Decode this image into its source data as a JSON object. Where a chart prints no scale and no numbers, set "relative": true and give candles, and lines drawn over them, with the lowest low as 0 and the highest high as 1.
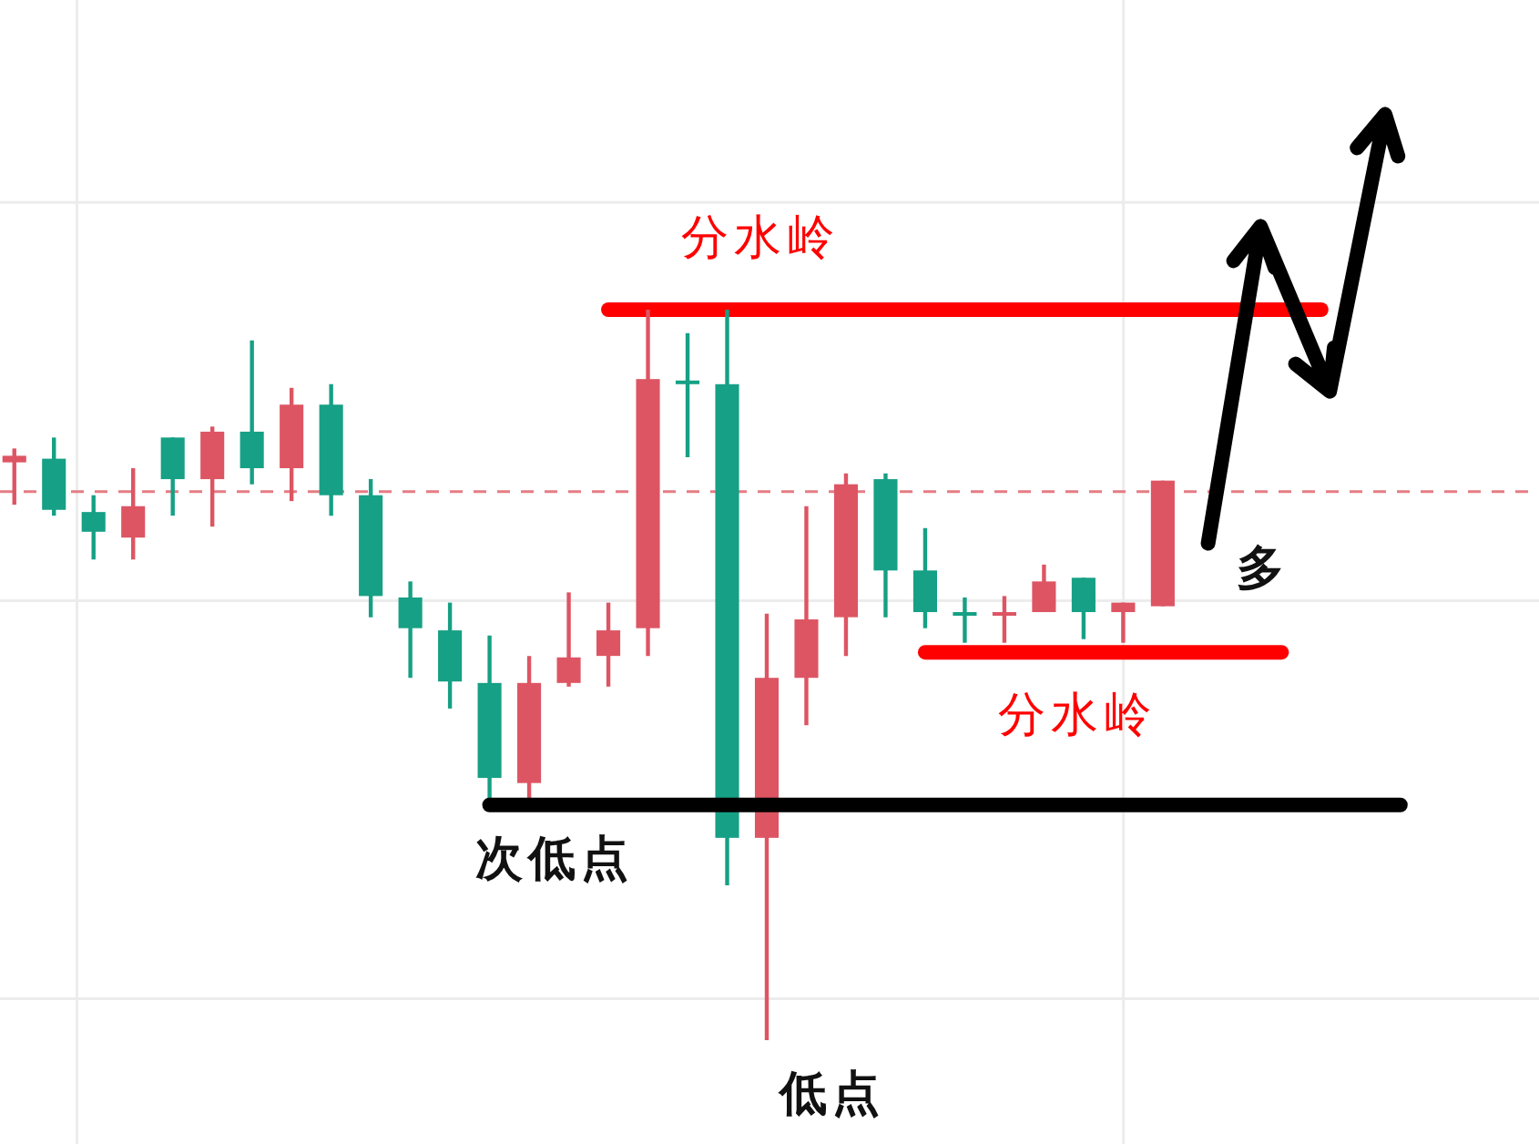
{
  "chart_data": {
    "type": "candlestick",
    "relative": true,
    "grid": true,
    "categories": [
      null,
      null,
      null,
      null,
      null,
      null,
      null,
      null,
      null,
      null,
      null,
      null,
      null,
      null,
      null,
      null,
      null,
      null,
      null,
      null,
      null,
      null,
      null,
      null,
      null,
      null,
      null,
      null,
      null,
      null,
      null,
      null,
      null,
      null,
      null,
      null,
      null,
      null,
      null
    ],
    "ohlc": [
      [
        0.791,
        0.81,
        0.733,
        0.8
      ],
      [
        0.796,
        0.825,
        0.718,
        0.726
      ],
      [
        0.723,
        0.746,
        0.658,
        0.696
      ],
      [
        0.688,
        0.783,
        0.658,
        0.731
      ],
      [
        0.825,
        0.825,
        0.718,
        0.768
      ],
      [
        0.768,
        0.84,
        0.703,
        0.833
      ],
      [
        0.833,
        0.958,
        0.761,
        0.783
      ],
      [
        0.783,
        0.893,
        0.738,
        0.87
      ],
      [
        0.87,
        0.898,
        0.718,
        0.746
      ],
      [
        0.746,
        0.768,
        0.579,
        0.608
      ],
      [
        0.606,
        0.628,
        0.496,
        0.564
      ],
      [
        0.561,
        0.599,
        0.454,
        0.491
      ],
      [
        0.489,
        0.554,
        0.327,
        0.359
      ],
      [
        0.352,
        0.526,
        0.327,
        0.489
      ],
      [
        0.489,
        0.613,
        0.484,
        0.524
      ],
      [
        0.526,
        0.599,
        0.484,
        0.561
      ],
      [
        0.564,
        1,
        0.526,
        0.905
      ],
      [
        0.903,
        0.968,
        0.798,
        0.9
      ],
      [
        0.898,
        1,
        0.212,
        0.277
      ],
      [
        0.277,
        0.584,
        0,
        0.496
      ],
      [
        0.496,
        0.731,
        0.431,
        0.576
      ],
      [
        0.579,
        0.776,
        0.526,
        0.761
      ],
      [
        0.768,
        0.776,
        0.579,
        0.643
      ],
      [
        0.643,
        0.701,
        0.564,
        0.586
      ],
      [
        0.586,
        0.606,
        0.544,
        0.584
      ],
      [
        0.584,
        0.608,
        0.544,
        0.586
      ],
      [
        0.586,
        0.651,
        0.586,
        0.628
      ],
      [
        0.633,
        0.633,
        0.549,
        0.586
      ],
      [
        0.586,
        0.599,
        0.544,
        0.599
      ],
      [
        0.594,
        0.766,
        0.594,
        0.766
      ],
      null,
      null,
      null,
      null,
      null,
      null,
      null,
      null,
      null
    ],
    "colors": [
      "#dd5563",
      "#16a085",
      "#16a085",
      "#dd5563",
      "#16a085",
      "#dd5563",
      "#16a085",
      "#dd5563",
      "#16a085",
      "#16a085",
      "#16a085",
      "#16a085",
      "#16a085",
      "#dd5563",
      "#dd5563",
      "#dd5563",
      "#dd5563",
      "#16a085",
      "#16a085",
      "#dd5563",
      "#dd5563",
      "#dd5563",
      "#16a085",
      "#16a085",
      "#16a085",
      "#dd5563",
      "#dd5563",
      "#16a085",
      "#dd5563",
      "#dd5563",
      null,
      null,
      null,
      null,
      null,
      null,
      null,
      null,
      null
    ],
    "series": [
      {
        "type": "line",
        "name": "分水岭",
        "color": "#ff0000",
        "values": [
          null,
          null,
          null,
          null,
          null,
          null,
          null,
          null,
          null,
          null,
          null,
          null,
          null,
          null,
          null,
          1,
          1,
          1,
          1,
          1,
          1,
          1,
          1,
          1,
          1,
          1,
          1,
          1,
          1,
          1,
          1,
          1,
          1,
          1,
          null,
          null,
          null,
          null,
          null
        ]
      },
      {
        "type": "line",
        "name": "分水岭",
        "color": "#ff0000",
        "values": [
          null,
          null,
          null,
          null,
          null,
          null,
          null,
          null,
          null,
          null,
          null,
          null,
          null,
          null,
          null,
          null,
          null,
          null,
          null,
          null,
          null,
          null,
          null,
          0.531,
          0.531,
          0.531,
          0.531,
          0.531,
          0.531,
          0.531,
          0.531,
          0.531,
          0.531,
          null,
          null,
          null,
          null,
          null,
          null
        ]
      },
      {
        "type": "line",
        "color": "#000000",
        "values": [
          null,
          null,
          null,
          null,
          null,
          null,
          null,
          null,
          null,
          null,
          null,
          null,
          0.322,
          0.322,
          0.322,
          0.322,
          0.322,
          0.322,
          0.322,
          0.322,
          0.322,
          0.322,
          0.322,
          0.322,
          0.322,
          0.322,
          0.322,
          0.322,
          0.322,
          0.322,
          0.322,
          0.322,
          0.322,
          0.322,
          0.322,
          0.322,
          null,
          null,
          null
        ]
      }
    ],
    "ref_lines": [
      {
        "axis": "y",
        "value": 0.751,
        "color": "#e57c84",
        "line_style": "dashed"
      }
    ],
    "annotations": [
      {
        "text": "次低点",
        "y": 0.327
      },
      "低点",
      "多"
    ]
  }
}
